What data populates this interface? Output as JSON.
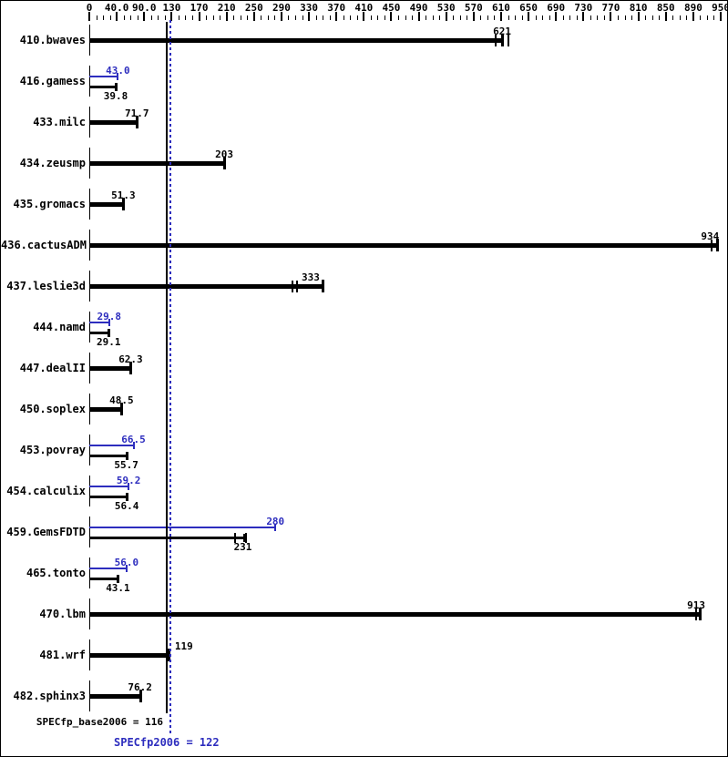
{
  "chart_data": {
    "type": "bar",
    "orientation": "horizontal",
    "axis": {
      "position": "top",
      "min_value": 0,
      "max_value": 950,
      "labels": [
        "0",
        "40.0",
        "90.0",
        "130",
        "170",
        "210",
        "250",
        "290",
        "330",
        "370",
        "410",
        "450",
        "490",
        "530",
        "570",
        "610",
        "650",
        "690",
        "730",
        "770",
        "810",
        "850",
        "890",
        "950"
      ]
    },
    "benchmarks": [
      {
        "name": "410.bwaves",
        "base": "621",
        "bar_end": 621,
        "marks": [
          611,
          630
        ]
      },
      {
        "name": "416.gamess",
        "base": "39.8",
        "peak": "43.0"
      },
      {
        "name": "433.milc",
        "base": "71.7"
      },
      {
        "name": "434.zeusmp",
        "base": "203"
      },
      {
        "name": "435.gromacs",
        "base": "51.3"
      },
      {
        "name": "436.cactusADM",
        "base": "934",
        "bar_end": 945,
        "marks": [
          936
        ]
      },
      {
        "name": "437.leslie3d",
        "base": "333",
        "bar_end": 351,
        "marks": [
          306,
          313
        ]
      },
      {
        "name": "444.namd",
        "base": "29.1",
        "peak": "29.8"
      },
      {
        "name": "447.dealII",
        "base": "62.3"
      },
      {
        "name": "450.soplex",
        "base": "48.5"
      },
      {
        "name": "453.povray",
        "base": "55.7",
        "peak": "66.5"
      },
      {
        "name": "454.calculix",
        "base": "56.4",
        "peak": "59.2"
      },
      {
        "name": "459.GemsFDTD",
        "base": "231",
        "peak": "280",
        "base_bar_end": 233,
        "base_marks": [
          219,
          236
        ]
      },
      {
        "name": "465.tonto",
        "base": "43.1",
        "peak": "56.0"
      },
      {
        "name": "470.lbm",
        "base": "913",
        "bar_end": 919,
        "marks": [
          913
        ]
      },
      {
        "name": "481.wrf",
        "base": "119"
      },
      {
        "name": "482.sphinx3",
        "base": "76.2"
      }
    ],
    "reference_lines": [
      {
        "value": 116,
        "style": "solid",
        "color": "#000000",
        "label": "SPECfp_base2006 = 116"
      },
      {
        "value": 122,
        "style": "dotted",
        "color": "#2d2dbe",
        "label": "SPECfp2006 = 122"
      }
    ],
    "summary": {
      "base": "SPECfp_base2006 = 116",
      "peak": "SPECfp2006 = 122"
    },
    "colors": {
      "base": "#000000",
      "peak": "#2d2dbe"
    }
  }
}
